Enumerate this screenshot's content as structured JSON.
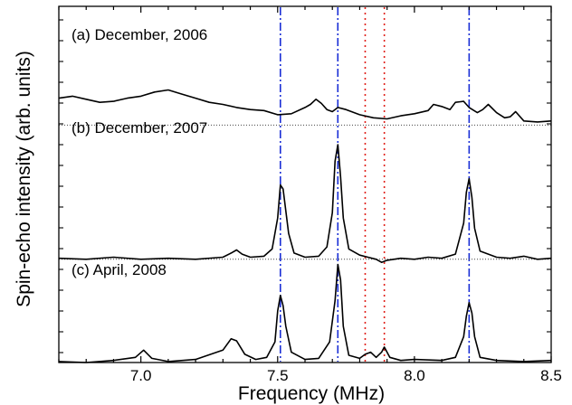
{
  "chart_data": {
    "type": "line",
    "xlabel": "Frequency (MHz)",
    "ylabel": "Spin-echo intensity (arb. units)",
    "xlim": [
      6.7,
      8.5
    ],
    "ylim": [
      0,
      3.45
    ],
    "xticks": [
      7.0,
      7.5,
      8.0,
      8.5
    ],
    "xtick_labels": [
      "7.0",
      "7.5",
      "8.0",
      "8.5"
    ],
    "panels": [
      {
        "label": "(a)  December, 2006",
        "baseline": 2.3,
        "x": [
          6.7,
          6.75,
          6.8,
          6.85,
          6.9,
          6.95,
          7.0,
          7.05,
          7.1,
          7.15,
          7.2,
          7.25,
          7.3,
          7.35,
          7.4,
          7.45,
          7.5,
          7.55,
          7.6,
          7.62,
          7.64,
          7.66,
          7.68,
          7.7,
          7.72,
          7.75,
          7.8,
          7.85,
          7.9,
          7.95,
          8.0,
          8.05,
          8.07,
          8.1,
          8.13,
          8.15,
          8.18,
          8.2,
          8.23,
          8.25,
          8.27,
          8.3,
          8.33,
          8.35,
          8.37,
          8.4,
          8.45,
          8.5
        ],
        "y": [
          2.56,
          2.58,
          2.55,
          2.52,
          2.53,
          2.56,
          2.58,
          2.62,
          2.64,
          2.6,
          2.56,
          2.52,
          2.5,
          2.47,
          2.45,
          2.44,
          2.4,
          2.41,
          2.47,
          2.5,
          2.55,
          2.51,
          2.45,
          2.43,
          2.47,
          2.45,
          2.4,
          2.37,
          2.36,
          2.39,
          2.41,
          2.44,
          2.5,
          2.48,
          2.45,
          2.52,
          2.53,
          2.47,
          2.42,
          2.45,
          2.5,
          2.42,
          2.37,
          2.38,
          2.43,
          2.34,
          2.33,
          2.34
        ]
      },
      {
        "label": "(b)  December, 2007",
        "baseline": 1.0,
        "x": [
          6.7,
          6.8,
          6.9,
          7.0,
          7.1,
          7.2,
          7.3,
          7.33,
          7.35,
          7.37,
          7.4,
          7.45,
          7.48,
          7.5,
          7.51,
          7.52,
          7.54,
          7.56,
          7.6,
          7.65,
          7.68,
          7.7,
          7.71,
          7.72,
          7.73,
          7.74,
          7.76,
          7.8,
          7.83,
          7.86,
          7.88,
          7.9,
          7.95,
          8.0,
          8.05,
          8.1,
          8.15,
          8.18,
          8.19,
          8.2,
          8.21,
          8.22,
          8.24,
          8.3,
          8.35,
          8.4,
          8.45,
          8.5
        ],
        "y": [
          1.01,
          1.0,
          1.02,
          1.0,
          1.01,
          1.0,
          1.02,
          1.06,
          1.09,
          1.05,
          1.02,
          1.03,
          1.1,
          1.4,
          1.72,
          1.68,
          1.25,
          1.06,
          1.02,
          1.03,
          1.12,
          1.45,
          1.95,
          2.11,
          1.8,
          1.4,
          1.1,
          1.04,
          1.02,
          1.0,
          0.97,
          0.99,
          1.01,
          1.0,
          1.02,
          1.01,
          1.05,
          1.35,
          1.65,
          1.78,
          1.6,
          1.3,
          1.08,
          1.02,
          1.01,
          1.03,
          1.0,
          1.01
        ]
      },
      {
        "label": "(c)  April, 2008",
        "baseline": 0.0,
        "x": [
          6.7,
          6.8,
          6.9,
          6.98,
          7.01,
          7.04,
          7.1,
          7.2,
          7.3,
          7.33,
          7.35,
          7.38,
          7.42,
          7.46,
          7.49,
          7.5,
          7.51,
          7.52,
          7.53,
          7.55,
          7.6,
          7.65,
          7.69,
          7.71,
          7.72,
          7.73,
          7.74,
          7.76,
          7.8,
          7.82,
          7.84,
          7.86,
          7.88,
          7.89,
          7.91,
          7.95,
          8.0,
          8.1,
          8.15,
          8.18,
          8.19,
          8.2,
          8.21,
          8.22,
          8.24,
          8.3,
          8.4,
          8.5
        ],
        "y": [
          0.01,
          0.0,
          0.02,
          0.05,
          0.12,
          0.04,
          0.01,
          0.03,
          0.12,
          0.23,
          0.21,
          0.08,
          0.03,
          0.05,
          0.2,
          0.5,
          0.65,
          0.55,
          0.35,
          0.1,
          0.03,
          0.04,
          0.2,
          0.6,
          0.95,
          0.8,
          0.35,
          0.07,
          0.04,
          0.08,
          0.1,
          0.05,
          0.1,
          0.15,
          0.05,
          0.02,
          0.03,
          0.02,
          0.05,
          0.25,
          0.45,
          0.58,
          0.48,
          0.25,
          0.05,
          0.02,
          0.01,
          0.02
        ]
      }
    ],
    "reference_lines_blue": [
      7.51,
      7.72,
      8.2
    ],
    "reference_lines_red": [
      7.82,
      7.89
    ],
    "grid": false,
    "legend": "none"
  }
}
